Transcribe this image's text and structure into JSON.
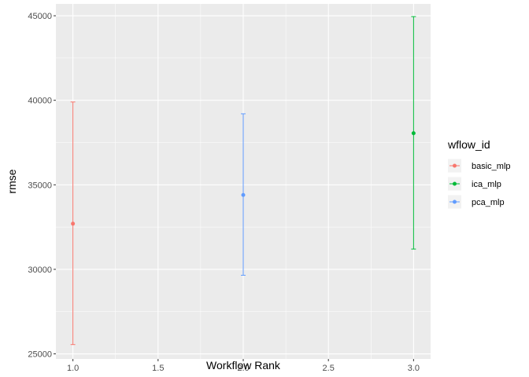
{
  "chart_data": {
    "type": "scatter",
    "xlabel": "Workflow Rank",
    "ylabel": "rmse",
    "xlim": [
      0.9,
      3.1
    ],
    "ylim": [
      24700,
      45700
    ],
    "x_ticks": [
      1.0,
      1.5,
      2.0,
      2.5,
      3.0
    ],
    "x_tick_labels": [
      "1.0",
      "1.5",
      "2.0",
      "2.5",
      "3.0"
    ],
    "y_ticks": [
      25000,
      30000,
      35000,
      40000,
      45000
    ],
    "y_tick_labels": [
      "25000",
      "30000",
      "35000",
      "40000",
      "45000"
    ],
    "grid": true,
    "legend": {
      "title": "wflow_id",
      "position": "right",
      "entries": [
        "basic_mlp",
        "ica_mlp",
        "pca_mlp"
      ]
    },
    "series": [
      {
        "name": "basic_mlp",
        "color": "#F8766D",
        "x": 1,
        "y": 32700,
        "ymin": 25550,
        "ymax": 39900
      },
      {
        "name": "ica_mlp",
        "color": "#00BA38",
        "x": 3,
        "y": 38050,
        "ymin": 31200,
        "ymax": 44950
      },
      {
        "name": "pca_mlp",
        "color": "#619CFF",
        "x": 2,
        "y": 34400,
        "ymin": 29650,
        "ymax": 39200
      }
    ]
  }
}
